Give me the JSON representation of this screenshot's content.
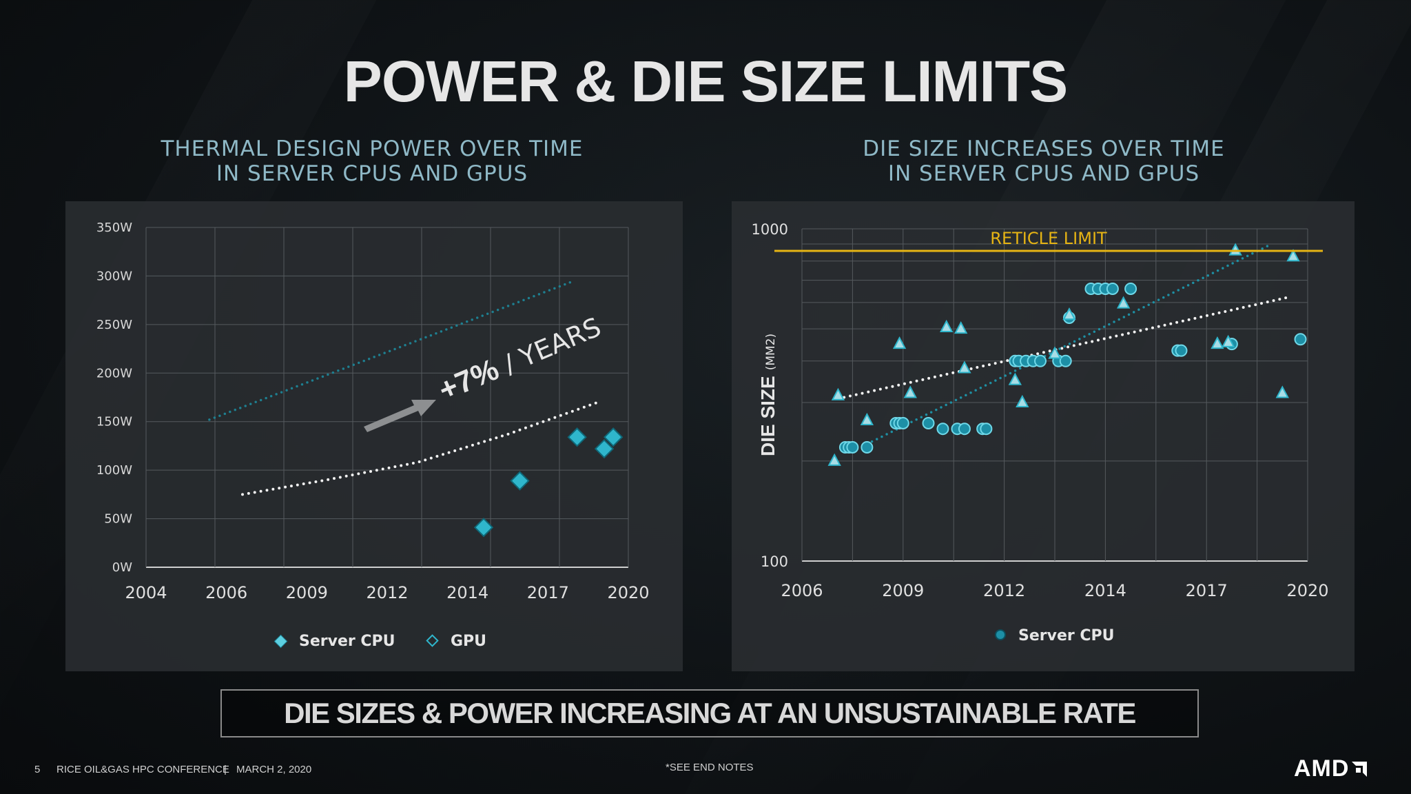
{
  "title": "POWER & DIE SIZE LIMITS",
  "left_subtitle": [
    "THERMAL DESIGN POWER OVER TIME",
    "IN SERVER CPUS AND GPUS"
  ],
  "right_subtitle": [
    "DIE SIZE INCREASES OVER TIME",
    "IN SERVER CPUS AND GPUS"
  ],
  "callout": "DIE SIZES & POWER INCREASING AT AN UNSUSTAINABLE RATE",
  "footer": {
    "page": "5",
    "conference": "RICE OIL&GAS HPC CONFERENCE",
    "separator": "|",
    "date": "MARCH 2, 2020",
    "notes": "*SEE END NOTES"
  },
  "logo": "AMD",
  "colors": {
    "accent": "#2fb6cc",
    "trend": "#ffffff",
    "gpu_trend": "#1e8fa3",
    "reticle": "#e6b414"
  },
  "chart_data": [
    {
      "type": "scatter",
      "title": "THERMAL DESIGN POWER OVER TIME IN SERVER CPUS AND GPUS",
      "xlabel": "",
      "ylabel": "",
      "xlim": [
        2004,
        2020
      ],
      "ylim": [
        0,
        350
      ],
      "x_ticks": [
        "2004",
        "2006",
        "2009",
        "2012",
        "2014",
        "2017",
        "2020"
      ],
      "y_ticks": [
        "0W",
        "50W",
        "100W",
        "150W",
        "200W",
        "250W",
        "300W",
        "350W"
      ],
      "annotation": {
        "big": "+7%",
        "rest": " / YEARS"
      },
      "legend": [
        "Server CPU",
        "GPU"
      ],
      "series": [
        {
          "name": "Server CPU",
          "marker": "diamond",
          "points": [
            [
              2015.2,
              41
            ],
            [
              2016.4,
              89
            ],
            [
              2018.3,
              134
            ],
            [
              2019.2,
              122
            ],
            [
              2019.5,
              134
            ]
          ]
        },
        {
          "name": "CPU trend",
          "style": "dotted-white",
          "points": [
            [
              2007.2,
              75
            ],
            [
              2010,
              90
            ],
            [
              2013,
              108
            ],
            [
              2016,
              137
            ],
            [
              2019.0,
              170
            ]
          ]
        },
        {
          "name": "GPU trend",
          "style": "dotted-teal",
          "points": [
            [
              2006.1,
              152
            ],
            [
              2018.2,
              295
            ]
          ]
        }
      ]
    },
    {
      "type": "scatter",
      "title": "DIE SIZE INCREASES OVER TIME IN SERVER CPUS AND GPUS",
      "ylabel": "DIE SIZE",
      "ylabel_unit": "(MM2)",
      "xlim": [
        2006,
        2020
      ],
      "ylim": [
        100,
        1000
      ],
      "yscale": "log",
      "x_ticks": [
        "2006",
        "2009",
        "2012",
        "2014",
        "2017",
        "2020"
      ],
      "y_ticks": [
        "100",
        "1000"
      ],
      "reticle_label": "RETICLE LIMIT",
      "reticle_value": 858,
      "legend": [
        "Server CPU"
      ],
      "series": [
        {
          "name": "Server CPU",
          "marker": "circle",
          "points": [
            [
              2007.2,
              220
            ],
            [
              2007.3,
              220
            ],
            [
              2007.4,
              220
            ],
            [
              2007.8,
              220
            ],
            [
              2008.6,
              260
            ],
            [
              2008.7,
              260
            ],
            [
              2008.8,
              260
            ],
            [
              2009.5,
              260
            ],
            [
              2009.9,
              250
            ],
            [
              2010.3,
              250
            ],
            [
              2010.5,
              250
            ],
            [
              2011.0,
              250
            ],
            [
              2011.1,
              250
            ],
            [
              2011.9,
              400
            ],
            [
              2012.0,
              400
            ],
            [
              2012.2,
              400
            ],
            [
              2012.4,
              400
            ],
            [
              2012.6,
              400
            ],
            [
              2013.1,
              400
            ],
            [
              2013.3,
              400
            ],
            [
              2013.4,
              540
            ],
            [
              2014.0,
              660
            ],
            [
              2014.2,
              660
            ],
            [
              2014.4,
              660
            ],
            [
              2014.6,
              660
            ],
            [
              2015.1,
              660
            ],
            [
              2016.4,
              430
            ],
            [
              2016.5,
              430
            ],
            [
              2017.9,
              450
            ],
            [
              2019.8,
              465
            ]
          ]
        },
        {
          "name": "GPU",
          "marker": "triangle",
          "points": [
            [
              2006.9,
              200
            ],
            [
              2007.0,
              315
            ],
            [
              2007.8,
              265
            ],
            [
              2008.7,
              450
            ],
            [
              2009.0,
              320
            ],
            [
              2010.0,
              505
            ],
            [
              2010.4,
              500
            ],
            [
              2010.5,
              380
            ],
            [
              2011.9,
              350
            ],
            [
              2012.1,
              300
            ],
            [
              2013.0,
              420
            ],
            [
              2013.4,
              550
            ],
            [
              2014.9,
              595
            ],
            [
              2017.5,
              450
            ],
            [
              2017.8,
              455
            ],
            [
              2018.0,
              860
            ],
            [
              2019.3,
              320
            ],
            [
              2019.6,
              825
            ]
          ]
        },
        {
          "name": "CPU trend",
          "style": "dotted-white",
          "points": [
            [
              2007.0,
              308
            ],
            [
              2019.4,
              620
            ]
          ]
        },
        {
          "name": "GPU trend",
          "style": "dotted-teal",
          "points": [
            [
              2007.8,
              225
            ],
            [
              2019.0,
              900
            ]
          ]
        }
      ]
    }
  ]
}
